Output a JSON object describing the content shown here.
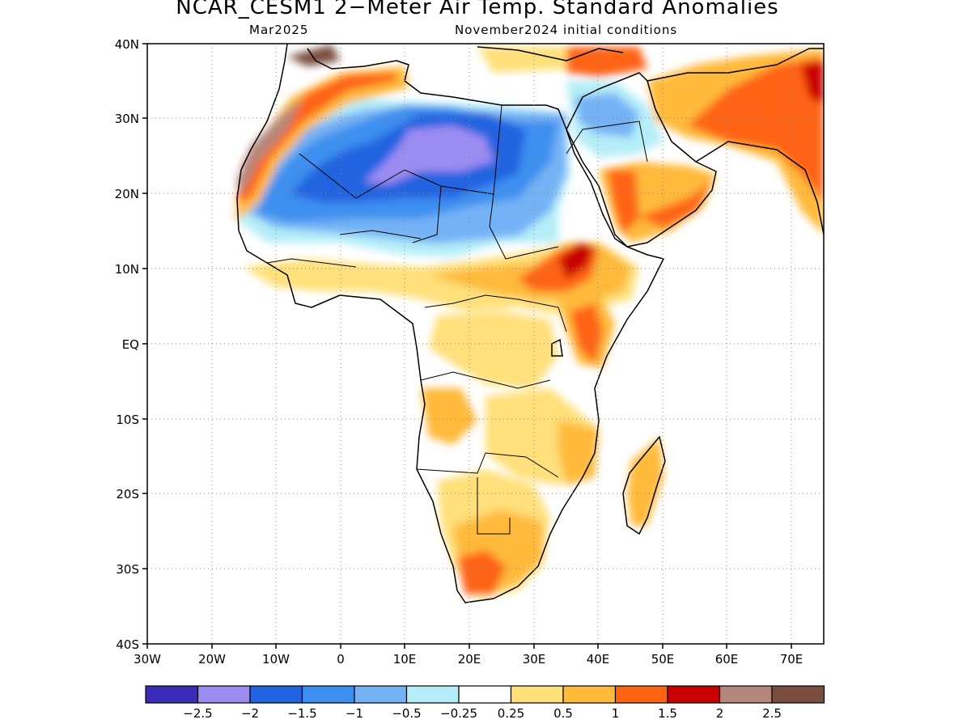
{
  "map": {
    "title": "NCAR_CESM1 2−Meter Air Temp. Standard Anomalies",
    "target_month": "Mar2025",
    "init": "November2024 initial conditions",
    "lat_labels": [
      "40N",
      "30N",
      "20N",
      "10N",
      "EQ",
      "10S",
      "20S",
      "30S",
      "40S"
    ],
    "lon_labels": [
      "30W",
      "20W",
      "10W",
      "0",
      "10E",
      "20E",
      "30E",
      "40E",
      "50E",
      "60E",
      "70E"
    ],
    "extent": {
      "lon": [
        -30,
        75
      ],
      "lat": [
        -40,
        40
      ]
    }
  },
  "colorbar": {
    "colors": [
      "#3a2bb8",
      "#9b8cf2",
      "#2163e0",
      "#3c8ff0",
      "#75b2f5",
      "#b5eef8",
      "#ffffff",
      "#ffe07a",
      "#ffba3a",
      "#ff6312",
      "#c90000",
      "#b5877a",
      "#7a4e3f"
    ],
    "labels": [
      "−2.5",
      "−2",
      "−1.5",
      "−1",
      "−0.5",
      "−0.25",
      "0.25",
      "0.5",
      "1",
      "1.5",
      "2",
      "2.5"
    ]
  }
}
